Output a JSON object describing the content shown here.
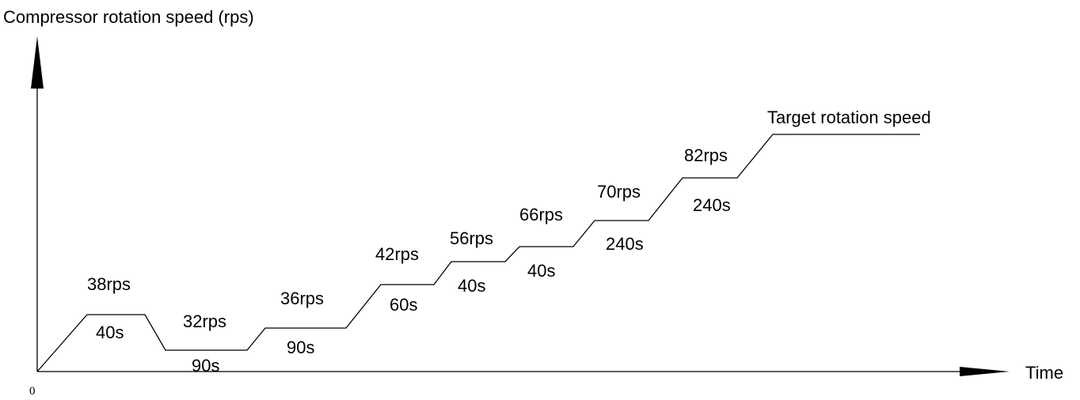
{
  "y_axis_title": "Compressor rotation speed (rps)",
  "x_axis_title": "Time",
  "origin_label": "0",
  "target_label": "Target rotation speed",
  "steps": [
    {
      "speed": "38rps",
      "duration": "40s"
    },
    {
      "speed": "32rps",
      "duration": "90s"
    },
    {
      "speed": "36rps",
      "duration": "90s"
    },
    {
      "speed": "42rps",
      "duration": "60s"
    },
    {
      "speed": "56rps",
      "duration": "40s"
    },
    {
      "speed": "66rps",
      "duration": "40s"
    },
    {
      "speed": "70rps",
      "duration": "240s"
    },
    {
      "speed": "82rps",
      "duration": "240s"
    }
  ]
}
